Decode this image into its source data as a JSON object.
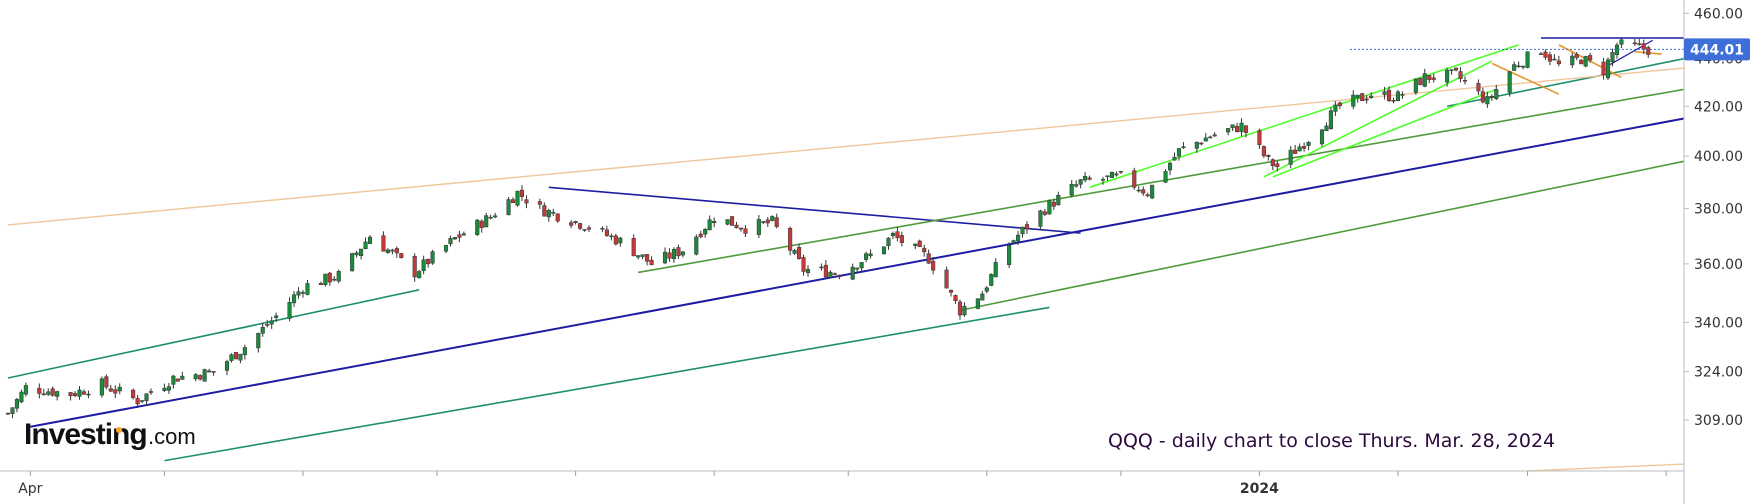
{
  "brand": {
    "name": "Investing",
    "suffix": ".com",
    "dot_color": "#f7a823"
  },
  "annotation": "QQQ - daily chart to close Thurs. Mar. 28, 2024",
  "chart_data": {
    "type": "candlestick",
    "ticker": "QQQ",
    "title": "",
    "xlabel": "",
    "ylabel": "",
    "ylim": [
      294,
      466
    ],
    "y_scale": "log",
    "yticks": [
      "460.00",
      "440.00",
      "420.00",
      "400.00",
      "380.00",
      "360.00",
      "340.00",
      "324.00",
      "309.00"
    ],
    "x_range": [
      "2023-03-27",
      "2024-04-05"
    ],
    "xticks": [
      {
        "date": "2023-04-01",
        "label": "Apr",
        "bold": false
      },
      {
        "date": "2023-05-01",
        "label": "",
        "bold": false
      },
      {
        "date": "2023-06-01",
        "label": "",
        "bold": false
      },
      {
        "date": "2023-07-01",
        "label": "",
        "bold": false
      },
      {
        "date": "2023-08-01",
        "label": "",
        "bold": false
      },
      {
        "date": "2023-09-01",
        "label": "",
        "bold": false
      },
      {
        "date": "2023-10-01",
        "label": "",
        "bold": false
      },
      {
        "date": "2023-11-01",
        "label": "",
        "bold": false
      },
      {
        "date": "2023-12-01",
        "label": "",
        "bold": false
      },
      {
        "date": "2024-01-01",
        "label": "2024",
        "bold": true
      },
      {
        "date": "2024-02-01",
        "label": "",
        "bold": false
      },
      {
        "date": "2024-03-01",
        "label": "",
        "bold": false
      },
      {
        "date": "2024-04-01",
        "label": "",
        "bold": false
      }
    ],
    "last_price": {
      "value": 444.01,
      "label": "444.01",
      "color": "#3e6fd8"
    },
    "colors": {
      "up": "#1b8a3c",
      "down": "#c23b3b"
    },
    "grid": false,
    "price_path": [
      [
        "2023-03-27",
        311
      ],
      [
        "2023-03-31",
        319
      ],
      [
        "2023-04-10",
        317
      ],
      [
        "2023-04-17",
        320
      ],
      [
        "2023-04-25",
        315
      ],
      [
        "2023-05-03",
        322
      ],
      [
        "2023-05-12",
        324
      ],
      [
        "2023-05-19",
        332
      ],
      [
        "2023-05-26",
        342
      ],
      [
        "2023-06-01",
        352
      ],
      [
        "2023-06-09",
        356
      ],
      [
        "2023-06-16",
        370
      ],
      [
        "2023-06-26",
        357
      ],
      [
        "2023-07-05",
        369
      ],
      [
        "2023-07-13",
        377
      ],
      [
        "2023-07-19",
        386
      ],
      [
        "2023-07-24",
        380
      ],
      [
        "2023-08-03",
        374
      ],
      [
        "2023-08-11",
        368
      ],
      [
        "2023-08-18",
        360
      ],
      [
        "2023-08-25",
        365
      ],
      [
        "2023-09-01",
        377
      ],
      [
        "2023-09-08",
        373
      ],
      [
        "2023-09-14",
        375
      ],
      [
        "2023-09-21",
        358
      ],
      [
        "2023-09-29",
        357
      ],
      [
        "2023-10-06",
        363
      ],
      [
        "2023-10-11",
        370
      ],
      [
        "2023-10-19",
        362
      ],
      [
        "2023-10-26",
        344
      ],
      [
        "2023-10-31",
        350
      ],
      [
        "2023-11-06",
        367
      ],
      [
        "2023-11-14",
        380
      ],
      [
        "2023-11-22",
        390
      ],
      [
        "2023-12-01",
        392
      ],
      [
        "2023-12-07",
        386
      ],
      [
        "2023-12-14",
        402
      ],
      [
        "2023-12-21",
        408
      ],
      [
        "2023-12-28",
        412
      ],
      [
        "2024-01-03",
        398
      ],
      [
        "2024-01-05",
        396
      ],
      [
        "2024-01-12",
        407
      ],
      [
        "2024-01-19",
        420
      ],
      [
        "2024-01-26",
        425
      ],
      [
        "2024-02-01",
        424
      ],
      [
        "2024-02-07",
        432
      ],
      [
        "2024-02-14",
        433
      ],
      [
        "2024-02-21",
        422
      ],
      [
        "2024-02-27",
        437
      ],
      [
        "2024-03-04",
        444
      ],
      [
        "2024-03-08",
        437
      ],
      [
        "2024-03-13",
        440
      ],
      [
        "2024-03-18",
        435
      ],
      [
        "2024-03-21",
        446
      ],
      [
        "2024-03-28",
        444
      ]
    ],
    "trendlines": [
      {
        "color": "#1e8f6e",
        "width": 1.6,
        "p1": [
          "2023-03-27",
          322
        ],
        "p2": [
          "2023-06-27",
          351
        ]
      },
      {
        "color": "#1e8f6e",
        "width": 1.6,
        "p1": [
          "2023-05-01",
          297
        ],
        "p2": [
          "2023-11-15",
          345
        ]
      },
      {
        "color": "#1e8f6e",
        "width": 1.6,
        "p1": [
          "2024-02-12",
          420
        ],
        "p2": [
          "2024-04-05",
          440
        ]
      },
      {
        "color": "#f1c69b",
        "width": 1.4,
        "p1": [
          "2023-03-27",
          374
        ],
        "p2": [
          "2024-04-05",
          436
        ]
      },
      {
        "color": "#f1c69b",
        "width": 1.4,
        "p1": [
          "2024-03-01",
          294
        ],
        "p2": [
          "2024-04-05",
          296
        ]
      },
      {
        "color": "#1d1da3",
        "width": 2,
        "p1": [
          "2023-04-01",
          307
        ],
        "p2": [
          "2024-04-05",
          415
        ]
      },
      {
        "color": "#1d1da3",
        "width": 1.6,
        "p1": [
          "2023-07-26",
          388
        ],
        "p2": [
          "2023-11-22",
          371
        ]
      },
      {
        "color": "#1d1da3",
        "width": 1.6,
        "p1": [
          "2024-03-04",
          449
        ],
        "p2": [
          "2024-04-05",
          449
        ]
      },
      {
        "color": "#1d1da3",
        "width": 1.2,
        "p1": [
          "2024-03-19",
          437
        ],
        "p2": [
          "2024-03-29",
          448
        ]
      },
      {
        "color": "#4f9a3a",
        "width": 1.6,
        "p1": [
          "2023-08-15",
          357
        ],
        "p2": [
          "2024-04-05",
          427
        ]
      },
      {
        "color": "#4f9a3a",
        "width": 1.6,
        "p1": [
          "2023-10-26",
          344
        ],
        "p2": [
          "2024-04-05",
          398
        ]
      },
      {
        "color": "#4dff28",
        "width": 1.6,
        "p1": [
          "2023-11-24",
          388
        ],
        "p2": [
          "2024-02-28",
          446
        ]
      },
      {
        "color": "#4dff28",
        "width": 1.6,
        "p1": [
          "2024-01-02",
          392
        ],
        "p2": [
          "2024-02-22",
          439
        ]
      },
      {
        "color": "#4dff28",
        "width": 1.6,
        "p1": [
          "2024-01-04",
          392
        ],
        "p2": [
          "2024-02-23",
          427
        ]
      },
      {
        "color": "#e5962e",
        "width": 1.6,
        "p1": [
          "2024-02-22",
          438
        ],
        "p2": [
          "2024-03-08",
          425
        ]
      },
      {
        "color": "#e5962e",
        "width": 1.6,
        "p1": [
          "2024-03-08",
          446
        ],
        "p2": [
          "2024-03-22",
          432
        ]
      },
      {
        "color": "#e5962e",
        "width": 1.6,
        "p1": [
          "2024-03-25",
          443
        ],
        "p2": [
          "2024-03-31",
          442
        ]
      }
    ]
  }
}
